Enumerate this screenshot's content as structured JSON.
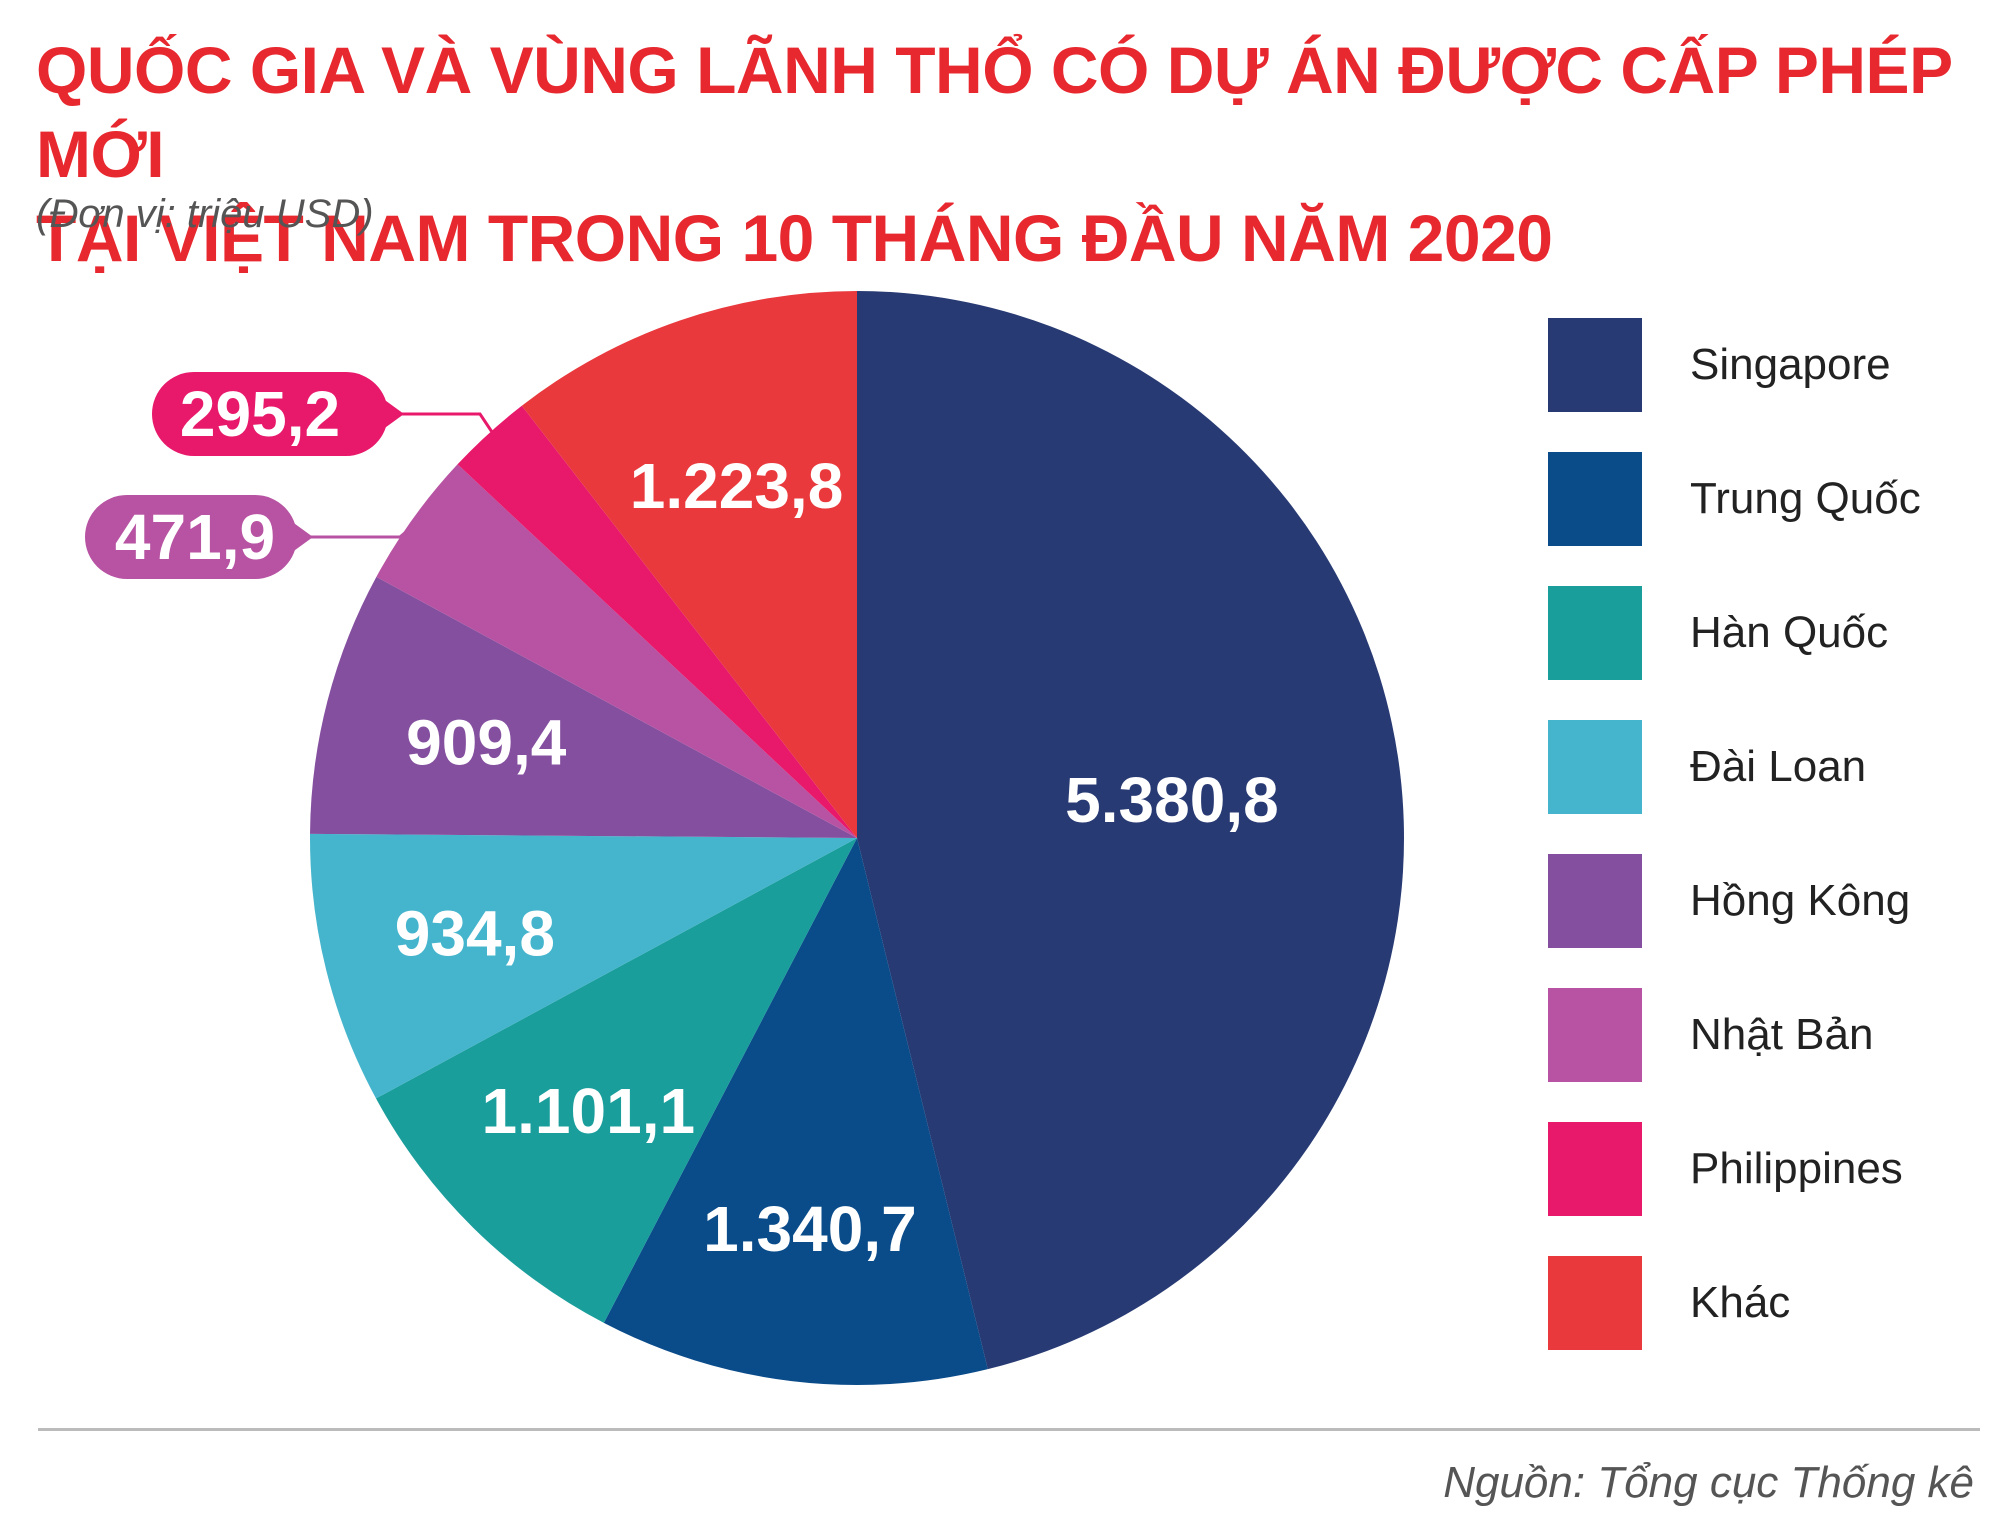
{
  "chart_data": {
    "type": "pie",
    "title": [
      "QUỐC GIA VÀ VÙNG LÃNH THỔ CÓ DỰ ÁN ĐƯỢC CẤP PHÉP MỚI",
      "TẠI VIỆT NAM TRONG 10 THÁNG ĐẦU NĂM 2020"
    ],
    "subtitle": "(Đơn vị: triệu USD)",
    "source": "Nguồn: Tổng cục Thống kê",
    "legend_position": "right",
    "slices": [
      {
        "name": "Singapore",
        "value": 5380.8,
        "label": "5.380,8",
        "color": "#283a73"
      },
      {
        "name": "Trung Quốc",
        "value": 1340.7,
        "label": "1.340,7",
        "color": "#0a4b8a"
      },
      {
        "name": "Hàn Quốc",
        "value": 1101.1,
        "label": "1.101,1",
        "color": "#1a9e9c"
      },
      {
        "name": "Đài Loan",
        "value": 934.8,
        "label": "934,8",
        "color": "#45b5cd"
      },
      {
        "name": "Hồng Kông",
        "value": 909.4,
        "label": "909,4",
        "color": "#844f9f"
      },
      {
        "name": "Nhật Bản",
        "value": 471.9,
        "label": "471,9",
        "color": "#b753a2",
        "callout": true
      },
      {
        "name": "Philippines",
        "value": 295.2,
        "label": "295,2",
        "color": "#e8186b",
        "callout": true
      },
      {
        "name": "Khác",
        "value": 1223.8,
        "label": "1.223,8",
        "color": "#e9393c"
      }
    ]
  }
}
